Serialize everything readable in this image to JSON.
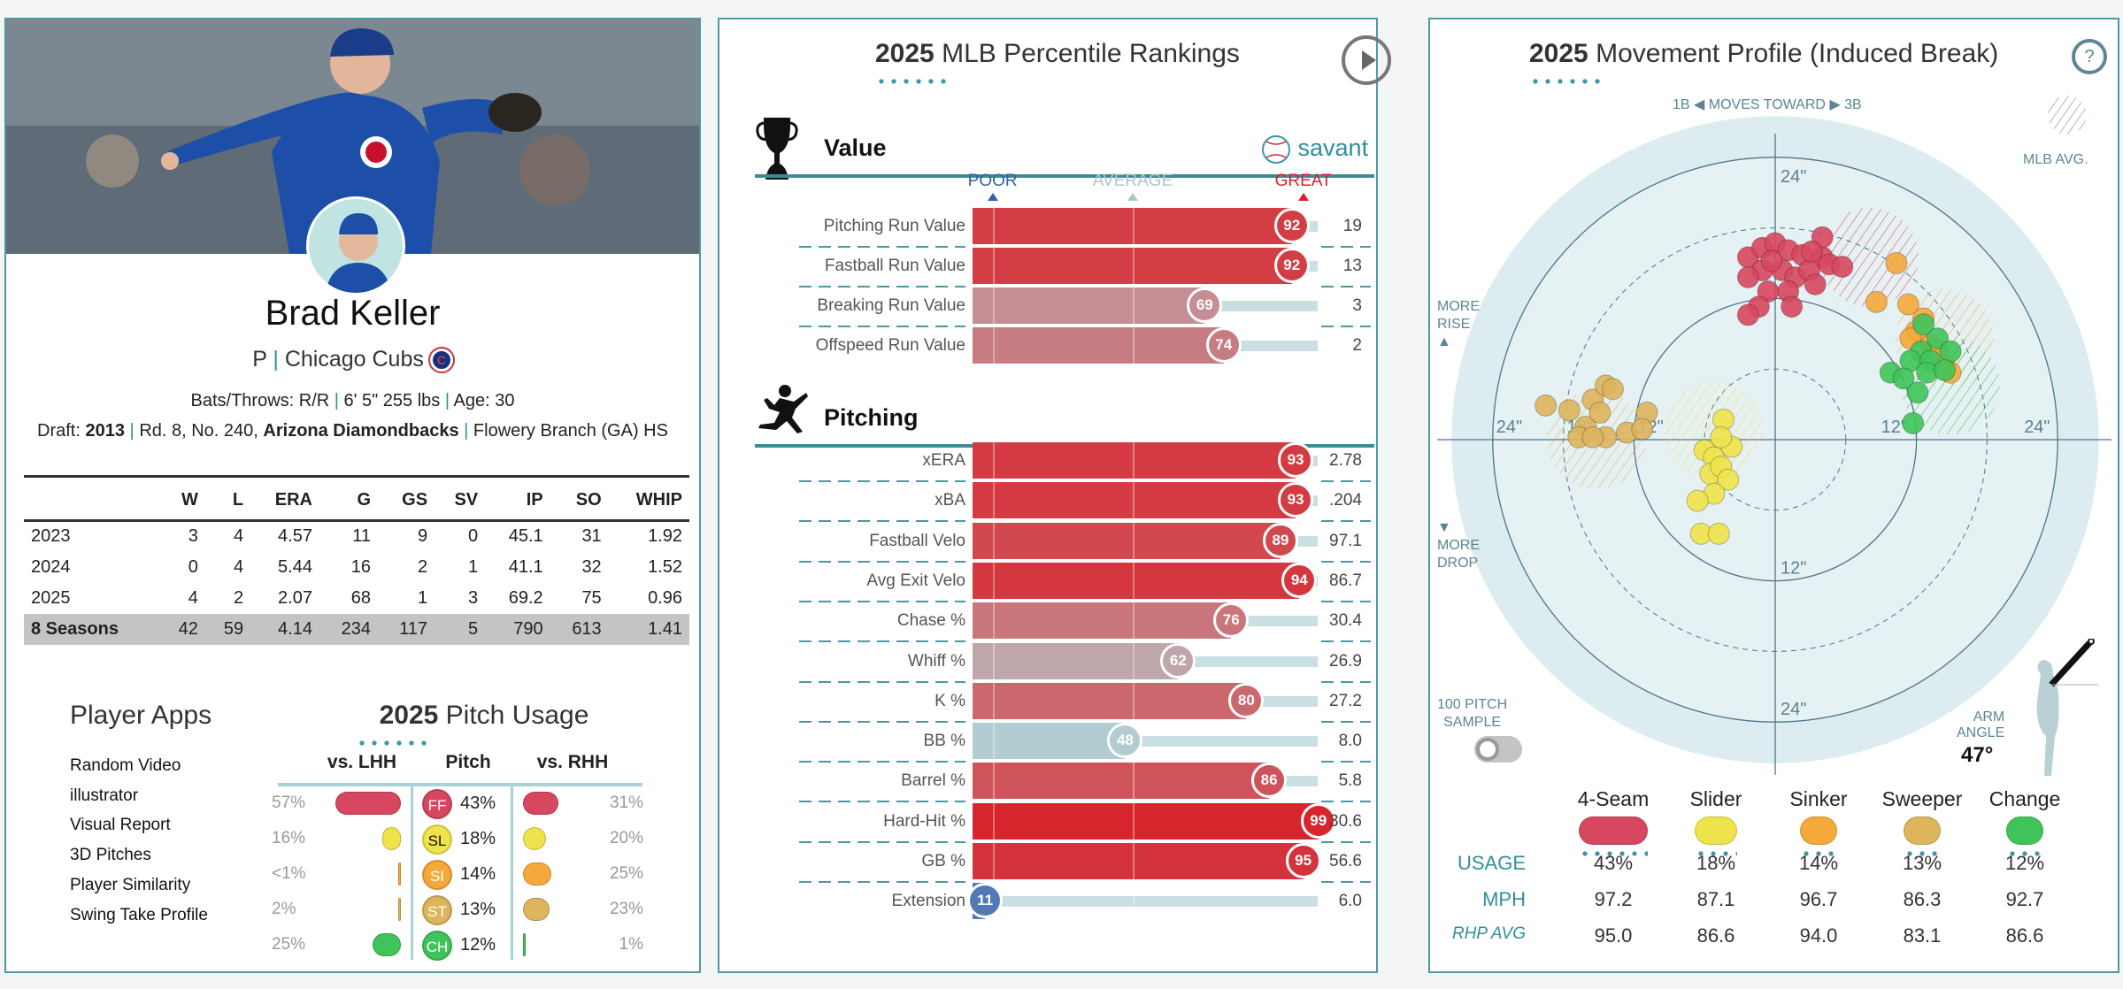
{
  "player": {
    "name": "Brad Keller",
    "position": "P",
    "team": "Chicago Cubs",
    "bats_throws": "Bats/Throws: R/R",
    "height_weight": "6' 5\" 255 lbs",
    "age": "Age: 30",
    "draft_prefix": "Draft:",
    "draft_year": "2013",
    "draft_pick": "Rd. 8, No. 240,",
    "draft_team": "Arizona Diamondbacks",
    "school": "Flowery Branch (GA) HS",
    "team_logo_letter": "C"
  },
  "stats": {
    "headers": [
      "",
      "W",
      "L",
      "ERA",
      "G",
      "GS",
      "SV",
      "IP",
      "SO",
      "WHIP"
    ],
    "rows": [
      [
        "2023",
        "3",
        "4",
        "4.57",
        "11",
        "9",
        "0",
        "45.1",
        "31",
        "1.92"
      ],
      [
        "2024",
        "0",
        "4",
        "5.44",
        "16",
        "2",
        "1",
        "41.1",
        "32",
        "1.52"
      ],
      [
        "2025",
        "4",
        "2",
        "2.07",
        "68",
        "1",
        "3",
        "69.2",
        "75",
        "0.96"
      ]
    ],
    "total": [
      "8 Seasons",
      "42",
      "59",
      "4.14",
      "234",
      "117",
      "5",
      "790",
      "613",
      "1.41"
    ]
  },
  "player_apps": {
    "title": "Player Apps",
    "items": [
      "Random Video",
      "illustrator",
      "Visual Report",
      "3D Pitches",
      "Player Similarity",
      "Swing Take Profile"
    ]
  },
  "pitch_usage": {
    "title_year": "2025",
    "title_rest": "Pitch Usage",
    "headers": {
      "lhh": "vs. LHH",
      "pitch": "Pitch",
      "rhh": "vs. RHH"
    },
    "rows": [
      {
        "code": "FF",
        "overall": "43%",
        "lhh": "57%",
        "rhh": "31%",
        "lhh_value": 57,
        "rhh_value": 31,
        "color": "#d7475f",
        "text_color": "#fff"
      },
      {
        "code": "SL",
        "overall": "18%",
        "lhh": "16%",
        "rhh": "20%",
        "lhh_value": 16,
        "rhh_value": 20,
        "color": "#eee34a",
        "text_color": "#111"
      },
      {
        "code": "SI",
        "overall": "14%",
        "lhh": "<1%",
        "rhh": "25%",
        "lhh_value": 0.5,
        "rhh_value": 25,
        "color": "#f5a93b",
        "text_color": "#fff"
      },
      {
        "code": "ST",
        "overall": "13%",
        "lhh": "2%",
        "rhh": "23%",
        "lhh_value": 2,
        "rhh_value": 23,
        "color": "#dcb55c",
        "text_color": "#fff"
      },
      {
        "code": "CH",
        "overall": "12%",
        "lhh": "25%",
        "rhh": "1%",
        "lhh_value": 25,
        "rhh_value": 1,
        "color": "#3fc45a",
        "text_color": "#fff"
      }
    ]
  },
  "percentiles": {
    "title_year": "2025",
    "title_rest": "MLB Percentile Rankings",
    "play_icon": "play-icon",
    "brand": "savant",
    "scale": {
      "poor": "POOR",
      "average": "AVERAGE",
      "great": "GREAT"
    },
    "colors": {
      "poor": "#3660ad",
      "average": "#b7d0d4",
      "great": "#d8222a"
    },
    "sections": [
      {
        "title": "Value",
        "icon": "trophy-icon",
        "rows": [
          {
            "label": "Pitching Run Value",
            "pct": 92,
            "value": "19"
          },
          {
            "label": "Fastball Run Value",
            "pct": 92,
            "value": "13"
          },
          {
            "label": "Breaking Run Value",
            "pct": 69,
            "value": "3"
          },
          {
            "label": "Offspeed Run Value",
            "pct": 74,
            "value": "2"
          }
        ]
      },
      {
        "title": "Pitching",
        "icon": "pitcher-icon",
        "rows": [
          {
            "label": "xERA",
            "pct": 93,
            "value": "2.78"
          },
          {
            "label": "xBA",
            "pct": 93,
            "value": ".204"
          },
          {
            "label": "Fastball Velo",
            "pct": 89,
            "value": "97.1"
          },
          {
            "label": "Avg Exit Velo",
            "pct": 94,
            "value": "86.7"
          },
          {
            "label": "Chase %",
            "pct": 76,
            "value": "30.4"
          },
          {
            "label": "Whiff %",
            "pct": 62,
            "value": "26.9"
          },
          {
            "label": "K %",
            "pct": 80,
            "value": "27.2"
          },
          {
            "label": "BB %",
            "pct": 48,
            "value": "8.0"
          },
          {
            "label": "Barrel %",
            "pct": 86,
            "value": "5.8"
          },
          {
            "label": "Hard-Hit %",
            "pct": 99,
            "value": "30.6"
          },
          {
            "label": "GB %",
            "pct": 95,
            "value": "56.6"
          },
          {
            "label": "Extension",
            "pct": 11,
            "value": "6.0"
          }
        ]
      }
    ]
  },
  "movement": {
    "title_year": "2025",
    "title_rest": "Movement Profile (Induced Break)",
    "help_icon": "?",
    "direction": {
      "left": "1B",
      "middle": "MOVES TOWARD",
      "right": "3B"
    },
    "mlb_avg_label": "MLB AVG.",
    "more_rise": [
      "MORE",
      "RISE"
    ],
    "more_drop": [
      "MORE",
      "DROP"
    ],
    "ring_labels": {
      "top": "24\"",
      "left": "24\"",
      "left_inner": "18\"",
      "left_12": "12\"",
      "right_12": "12\"",
      "right": "24\"",
      "bottom_12": "12\"",
      "bottom": "24\""
    },
    "sample_toggle": {
      "label": [
        "100 PITCH",
        "SAMPLE"
      ],
      "on": false
    },
    "arm_angle": {
      "label": [
        "ARM",
        "ANGLE"
      ],
      "value": "47°",
      "degrees": 47
    },
    "chart_data": {
      "type": "scatter",
      "xlabel": "1B ◀ MOVES TOWARD ▶ 3B",
      "units": "inches",
      "rings": [
        6,
        12,
        18,
        24
      ],
      "series": [
        {
          "name": "4-Seam",
          "color": "#d7475f",
          "mlb_avg": [
            8,
            15.5
          ],
          "points": [
            [
              -2.3,
              15.5
            ],
            [
              -1.1,
              16.3
            ],
            [
              0,
              16.7
            ],
            [
              1.1,
              16.1
            ],
            [
              2.3,
              15.7
            ],
            [
              4,
              15.5
            ],
            [
              0.6,
              14.4
            ],
            [
              -1.1,
              14.4
            ],
            [
              1.7,
              13.8
            ],
            [
              2.9,
              14.4
            ],
            [
              4.6,
              14.9
            ],
            [
              5.7,
              14.7
            ],
            [
              -2.3,
              13.8
            ],
            [
              -0.6,
              12.6
            ],
            [
              1.1,
              12.6
            ],
            [
              3.4,
              13.2
            ],
            [
              -1.4,
              11.3
            ],
            [
              -2.3,
              10.6
            ],
            [
              1.4,
              11.3
            ],
            [
              4,
              17.2
            ],
            [
              3.1,
              16
            ],
            [
              -0.3,
              15.2
            ]
          ]
        },
        {
          "name": "Sinker",
          "color": "#f5a93b",
          "mlb_avg": [
            14.4,
            8.6
          ],
          "points": [
            [
              10.3,
              15
            ],
            [
              8.6,
              11.7
            ],
            [
              11.3,
              11.5
            ],
            [
              12.6,
              10.3
            ],
            [
              12,
              9.2
            ],
            [
              13.2,
              8
            ],
            [
              11.5,
              8.6
            ],
            [
              14.4,
              6.3
            ],
            [
              14.9,
              5.7
            ],
            [
              13.8,
              7.5
            ]
          ]
        },
        {
          "name": "Change",
          "color": "#3fc45a",
          "mlb_avg": [
            14.9,
            4.6
          ],
          "points": [
            [
              12.6,
              9.8
            ],
            [
              13.8,
              8.6
            ],
            [
              12.4,
              7.5
            ],
            [
              11.5,
              6.7
            ],
            [
              13.2,
              6.7
            ],
            [
              14.9,
              7.5
            ],
            [
              9.8,
              5.7
            ],
            [
              10.9,
              5.2
            ],
            [
              12.1,
              4
            ],
            [
              12.9,
              5.7
            ],
            [
              14.4,
              5.9
            ],
            [
              11.7,
              1.4
            ]
          ]
        },
        {
          "name": "Sweeper",
          "color": "#dcb55c",
          "mlb_avg": [
            -15.2,
            0
          ],
          "points": [
            [
              -19.5,
              2.9
            ],
            [
              -17.5,
              2.5
            ],
            [
              -15.5,
              3.4
            ],
            [
              -14.4,
              4.6
            ],
            [
              -13.8,
              4.3
            ],
            [
              -16.1,
              1.1
            ],
            [
              -14.9,
              2.3
            ],
            [
              -16.7,
              0.2
            ],
            [
              -14.4,
              0.2
            ],
            [
              -12.6,
              0.6
            ],
            [
              -10.9,
              2.3
            ],
            [
              -11.3,
              0.9
            ],
            [
              -15.5,
              0.2
            ]
          ]
        },
        {
          "name": "Slider",
          "color": "#eee34a",
          "mlb_avg": [
            -5.2,
            0.8
          ],
          "points": [
            [
              -4.4,
              1.7
            ],
            [
              -6,
              -0.9
            ],
            [
              -5.2,
              -1.5
            ],
            [
              -3.7,
              -0.6
            ],
            [
              -4.6,
              0.2
            ],
            [
              -5.5,
              -2.9
            ],
            [
              -4.6,
              -2.3
            ],
            [
              -4,
              -3.4
            ],
            [
              -5.2,
              -4.6
            ],
            [
              -6.3,
              -8
            ],
            [
              -4.8,
              -8
            ],
            [
              -6.6,
              -5.2
            ]
          ]
        }
      ]
    },
    "legend": {
      "row_labels": {
        "usage": "USAGE",
        "mph": "MPH",
        "rhp_avg": "RHP AVG"
      },
      "pitches": [
        {
          "name": "4-Seam",
          "color": "#d7475f",
          "usage": "43%",
          "mph": "97.2",
          "rhp_avg": "95.0"
        },
        {
          "name": "Slider",
          "color": "#eee34a",
          "usage": "18%",
          "mph": "87.1",
          "rhp_avg": "86.6"
        },
        {
          "name": "Sinker",
          "color": "#f5a93b",
          "usage": "14%",
          "mph": "96.7",
          "rhp_avg": "94.0"
        },
        {
          "name": "Sweeper",
          "color": "#dcb55c",
          "usage": "13%",
          "mph": "86.3",
          "rhp_avg": "83.1"
        },
        {
          "name": "Change",
          "color": "#3fc45a",
          "usage": "12%",
          "mph": "92.7",
          "rhp_avg": "86.6"
        }
      ]
    }
  }
}
